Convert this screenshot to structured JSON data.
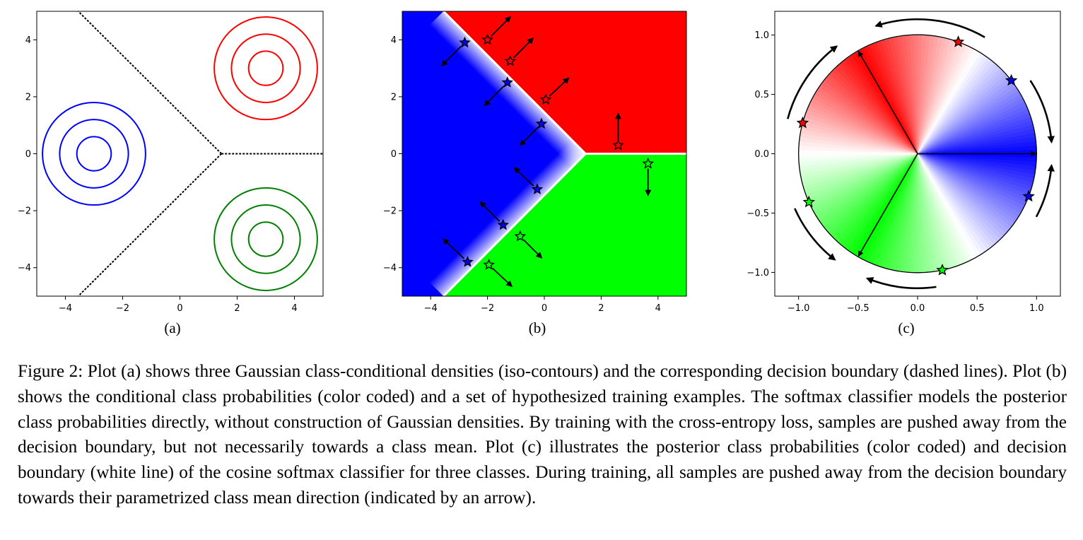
{
  "figure": {
    "panels": [
      {
        "label": "(a)",
        "chart_data": {
          "type": "contour",
          "xlim": [
            -5,
            5
          ],
          "ylim": [
            -5,
            5
          ],
          "xticks": [
            -4,
            -2,
            0,
            2,
            4
          ],
          "yticks": [
            -4,
            -2,
            0,
            2,
            4
          ],
          "xtick_labels": [
            "−4",
            "−2",
            "0",
            "2",
            "4"
          ],
          "ytick_labels": [
            "−4",
            "−2",
            "0",
            "2",
            "4"
          ],
          "gaussians": [
            {
              "color": "#ff0000",
              "mean": [
                3,
                3
              ],
              "radii": [
                0.6,
                1.2,
                1.8
              ]
            },
            {
              "color": "#0000ff",
              "mean": [
                -3,
                0
              ],
              "radii": [
                0.6,
                1.2,
                1.8
              ]
            },
            {
              "color": "#008000",
              "mean": [
                3,
                -3
              ],
              "radii": [
                0.6,
                1.2,
                1.8
              ]
            }
          ],
          "decision_boundary": [
            {
              "from": [
                1.45,
                0
              ],
              "to": [
                -3.55,
                5
              ]
            },
            {
              "from": [
                1.45,
                0
              ],
              "to": [
                5,
                0
              ]
            },
            {
              "from": [
                1.45,
                0
              ],
              "to": [
                -3.55,
                -5
              ]
            }
          ]
        }
      },
      {
        "label": "(b)",
        "chart_data": {
          "type": "scatter",
          "xlim": [
            -5,
            5
          ],
          "ylim": [
            -5,
            5
          ],
          "xticks": [
            -4,
            -2,
            0,
            2,
            4
          ],
          "yticks": [
            -4,
            -2,
            0,
            2,
            4
          ],
          "xtick_labels": [
            "−4",
            "−2",
            "0",
            "2",
            "4"
          ],
          "ytick_labels": [
            "−4",
            "−2",
            "0",
            "2",
            "4"
          ],
          "vertex": [
            1.45,
            0
          ],
          "region_colors": {
            "red": "#ff0000",
            "blue": "#0000ff",
            "green": "#00ff00"
          },
          "samples": [
            {
              "class": "blue",
              "x": -2.8,
              "y": 3.9,
              "arrow_to": [
                -3.6,
                3.1
              ]
            },
            {
              "class": "blue",
              "x": -1.3,
              "y": 2.5,
              "arrow_to": [
                -2.1,
                1.7
              ]
            },
            {
              "class": "blue",
              "x": -0.1,
              "y": 1.05,
              "arrow_to": [
                -0.85,
                0.3
              ]
            },
            {
              "class": "blue",
              "x": -0.25,
              "y": -1.25,
              "arrow_to": [
                -1.05,
                -0.5
              ]
            },
            {
              "class": "blue",
              "x": -1.45,
              "y": -2.5,
              "arrow_to": [
                -2.25,
                -1.7
              ]
            },
            {
              "class": "blue",
              "x": -2.7,
              "y": -3.8,
              "arrow_to": [
                -3.55,
                -3.0
              ]
            },
            {
              "class": "red",
              "x": -2.0,
              "y": 4.0,
              "arrow_to": [
                -1.2,
                4.8
              ]
            },
            {
              "class": "red",
              "x": -1.2,
              "y": 3.25,
              "arrow_to": [
                -0.4,
                4.05
              ]
            },
            {
              "class": "red",
              "x": 0.05,
              "y": 1.9,
              "arrow_to": [
                0.85,
                2.65
              ]
            },
            {
              "class": "red",
              "x": 2.6,
              "y": 0.3,
              "arrow_to": [
                2.6,
                1.4
              ]
            },
            {
              "class": "green",
              "x": -0.85,
              "y": -2.9,
              "arrow_to": [
                -0.1,
                -3.65
              ]
            },
            {
              "class": "green",
              "x": -1.95,
              "y": -3.9,
              "arrow_to": [
                -1.15,
                -4.65
              ]
            },
            {
              "class": "green",
              "x": 3.65,
              "y": -0.35,
              "arrow_to": [
                3.65,
                -1.45
              ]
            }
          ]
        }
      },
      {
        "label": "(c)",
        "chart_data": {
          "type": "polar",
          "xlim": [
            -1.2,
            1.2
          ],
          "ylim": [
            -1.2,
            1.2
          ],
          "xticks": [
            -1.0,
            -0.5,
            0.0,
            0.5,
            1.0
          ],
          "yticks": [
            -1.0,
            -0.5,
            0.0,
            0.5,
            1.0
          ],
          "xtick_labels": [
            "−1.0",
            "−0.5",
            "0.0",
            "0.5",
            "1.0"
          ],
          "ytick_labels": [
            "−1.0",
            "−0.5",
            "0.0",
            "0.5",
            "1.0"
          ],
          "class_means_deg": {
            "red": 120,
            "blue": 0,
            "green": 240
          },
          "colors": {
            "red": "#ff0000",
            "blue": "#0000ff",
            "green": "#00ff00"
          },
          "samples": [
            {
              "class": "red",
              "angle_deg": 70
            },
            {
              "class": "red",
              "angle_deg": 165
            },
            {
              "class": "blue",
              "angle_deg": 38
            },
            {
              "class": "blue",
              "angle_deg": -21
            },
            {
              "class": "green",
              "angle_deg": 204
            },
            {
              "class": "green",
              "angle_deg": 282
            }
          ],
          "rotation_arcs": [
            {
              "from_deg": 60,
              "to_deg": 108
            },
            {
              "from_deg": 165,
              "to_deg": 127
            },
            {
              "from_deg": 33,
              "to_deg": 5
            },
            {
              "from_deg": -28,
              "to_deg": -5
            },
            {
              "from_deg": 204,
              "to_deg": 232
            },
            {
              "from_deg": 278,
              "to_deg": 248
            }
          ]
        }
      }
    ]
  },
  "caption": "Figure 2: Plot (a) shows three Gaussian class-conditional densities (iso-contours) and the corresponding decision boundary (dashed lines). Plot (b) shows the conditional class probabilities (color coded) and a set of hypothesized training examples. The softmax classifier models the posterior class probabilities directly, without construction of Gaussian densities. By training with the cross-entropy loss, samples are pushed away from the decision boundary, but not necessarily towards a class mean. Plot (c) illustrates the posterior class probabilities (color coded) and decision boundary (white line) of the cosine softmax classifier for three classes. During training, all samples are pushed away from the decision boundary towards their parametrized class mean direction (indicated by an arrow)."
}
